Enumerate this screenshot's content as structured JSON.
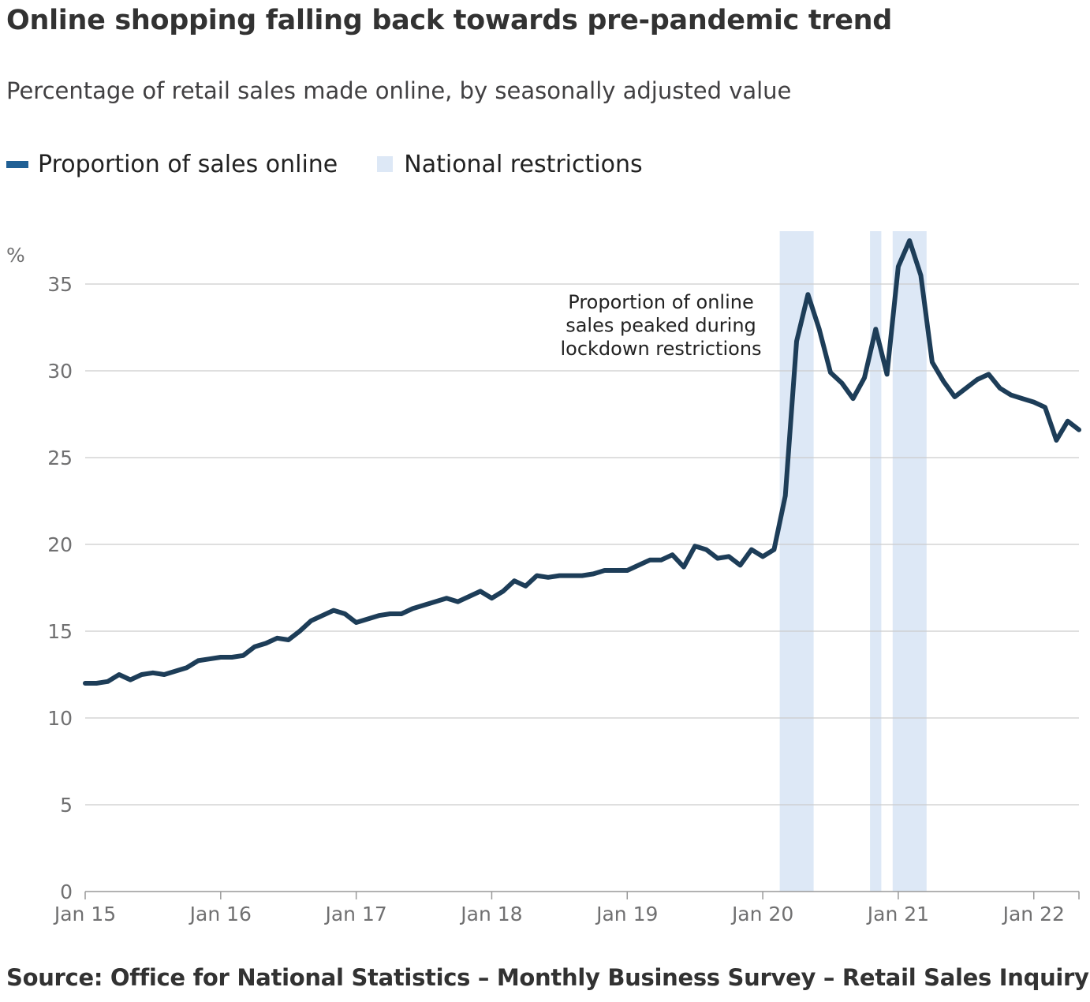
{
  "header": {
    "title": "Online shopping falling back towards pre-pandemic trend",
    "subtitle": "Percentage of retail sales made online, by seasonally adjusted value"
  },
  "legend": {
    "series_label": "Proportion of sales online",
    "restrictions_label": "National restrictions"
  },
  "source": "Source: Office for National Statistics – Monthly Business Survey – Retail Sales Inquiry",
  "colors": {
    "line": "#1d3d58",
    "legend_line": "#206095",
    "restriction_band": "#dde8f6",
    "grid": "#cccccc"
  },
  "chart_data": {
    "type": "line",
    "title": "Online shopping falling back towards pre-pandemic trend",
    "subtitle": "Percentage of retail sales made online, by seasonally adjusted value",
    "ylabel": "%",
    "xlabel": "",
    "ylim": [
      0,
      38
    ],
    "yticks": [
      0,
      5,
      10,
      15,
      20,
      25,
      30,
      35
    ],
    "xlim": [
      "2015-01",
      "2022-04"
    ],
    "xticks": [
      {
        "date": "2015-01",
        "label": "Jan 15"
      },
      {
        "date": "2016-01",
        "label": "Jan 16"
      },
      {
        "date": "2017-01",
        "label": "Jan 17"
      },
      {
        "date": "2018-01",
        "label": "Jan 18"
      },
      {
        "date": "2019-01",
        "label": "Jan 19"
      },
      {
        "date": "2020-01",
        "label": "Jan 20"
      },
      {
        "date": "2021-01",
        "label": "Jan 21"
      },
      {
        "date": "2022-01",
        "label": "Jan 22"
      }
    ],
    "grid": true,
    "legend_position": "top-left",
    "annotation": {
      "lines": [
        "Proportion of online",
        "sales peaked during",
        "lockdown restrictions"
      ],
      "near": "2020-04"
    },
    "shaded_periods": [
      {
        "start": "2020-03",
        "end": "2020-05"
      },
      {
        "start": "2020-11",
        "end": "2020-11"
      },
      {
        "start": "2021-01",
        "end": "2021-03"
      }
    ],
    "series": [
      {
        "name": "Proportion of sales online",
        "points": [
          [
            "2015-01",
            12.0
          ],
          [
            "2015-02",
            12.0
          ],
          [
            "2015-03",
            12.1
          ],
          [
            "2015-04",
            12.5
          ],
          [
            "2015-05",
            12.2
          ],
          [
            "2015-06",
            12.5
          ],
          [
            "2015-07",
            12.6
          ],
          [
            "2015-08",
            12.5
          ],
          [
            "2015-09",
            12.7
          ],
          [
            "2015-10",
            12.9
          ],
          [
            "2015-11",
            13.3
          ],
          [
            "2015-12",
            13.4
          ],
          [
            "2016-01",
            13.5
          ],
          [
            "2016-02",
            13.5
          ],
          [
            "2016-03",
            13.6
          ],
          [
            "2016-04",
            14.1
          ],
          [
            "2016-05",
            14.3
          ],
          [
            "2016-06",
            14.6
          ],
          [
            "2016-07",
            14.5
          ],
          [
            "2016-08",
            15.0
          ],
          [
            "2016-09",
            15.6
          ],
          [
            "2016-10",
            15.9
          ],
          [
            "2016-11",
            16.2
          ],
          [
            "2016-12",
            16.0
          ],
          [
            "2017-01",
            15.5
          ],
          [
            "2017-02",
            15.7
          ],
          [
            "2017-03",
            15.9
          ],
          [
            "2017-04",
            16.0
          ],
          [
            "2017-05",
            16.0
          ],
          [
            "2017-06",
            16.3
          ],
          [
            "2017-07",
            16.5
          ],
          [
            "2017-08",
            16.7
          ],
          [
            "2017-09",
            16.9
          ],
          [
            "2017-10",
            16.7
          ],
          [
            "2017-11",
            17.0
          ],
          [
            "2017-12",
            17.3
          ],
          [
            "2018-01",
            16.9
          ],
          [
            "2018-02",
            17.3
          ],
          [
            "2018-03",
            17.9
          ],
          [
            "2018-04",
            17.6
          ],
          [
            "2018-05",
            18.2
          ],
          [
            "2018-06",
            18.1
          ],
          [
            "2018-07",
            18.2
          ],
          [
            "2018-08",
            18.2
          ],
          [
            "2018-09",
            18.2
          ],
          [
            "2018-10",
            18.3
          ],
          [
            "2018-11",
            18.5
          ],
          [
            "2018-12",
            18.5
          ],
          [
            "2019-01",
            18.5
          ],
          [
            "2019-02",
            18.8
          ],
          [
            "2019-03",
            19.1
          ],
          [
            "2019-04",
            19.1
          ],
          [
            "2019-05",
            19.4
          ],
          [
            "2019-06",
            18.7
          ],
          [
            "2019-07",
            19.9
          ],
          [
            "2019-08",
            19.7
          ],
          [
            "2019-09",
            19.2
          ],
          [
            "2019-10",
            19.3
          ],
          [
            "2019-11",
            18.8
          ],
          [
            "2019-12",
            19.7
          ],
          [
            "2020-01",
            19.3
          ],
          [
            "2020-02",
            19.7
          ],
          [
            "2020-03",
            22.8
          ],
          [
            "2020-04",
            31.7
          ],
          [
            "2020-05",
            34.4
          ],
          [
            "2020-06",
            32.4
          ],
          [
            "2020-07",
            29.9
          ],
          [
            "2020-08",
            29.3
          ],
          [
            "2020-09",
            28.4
          ],
          [
            "2020-10",
            29.6
          ],
          [
            "2020-11",
            32.4
          ],
          [
            "2020-12",
            29.8
          ],
          [
            "2021-01",
            36.0
          ],
          [
            "2021-02",
            37.5
          ],
          [
            "2021-03",
            35.5
          ],
          [
            "2021-04",
            30.5
          ],
          [
            "2021-05",
            29.4
          ],
          [
            "2021-06",
            28.5
          ],
          [
            "2021-07",
            29.0
          ],
          [
            "2021-08",
            29.5
          ],
          [
            "2021-09",
            29.8
          ],
          [
            "2021-10",
            29.0
          ],
          [
            "2021-11",
            28.6
          ],
          [
            "2021-12",
            28.4
          ],
          [
            "2022-01",
            28.2
          ],
          [
            "2022-02",
            27.9
          ],
          [
            "2022-03",
            26.0
          ],
          [
            "2022-04",
            27.1
          ],
          [
            "2022-05",
            26.6
          ]
        ]
      }
    ]
  }
}
